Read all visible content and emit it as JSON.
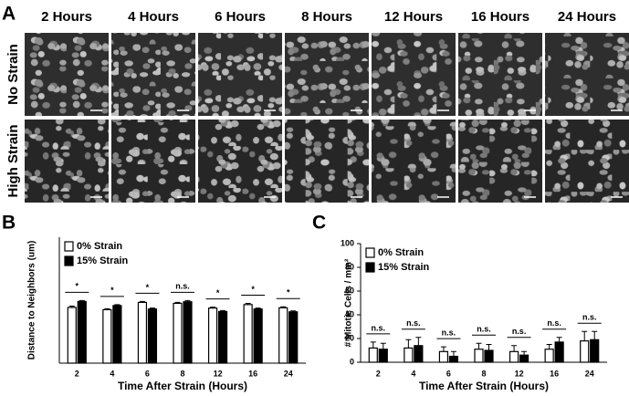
{
  "panel_a": {
    "label": "A",
    "columns": [
      "2 Hours",
      "4 Hours",
      "6 Hours",
      "8 Hours",
      "12 Hours",
      "16 Hours",
      "24 Hours"
    ],
    "rows": [
      "No Strain",
      "High Strain"
    ]
  },
  "chart_data": [
    {
      "type": "bar",
      "panel": "B",
      "x_label": "Time After Strain (Hours)",
      "y_label": "Distance to  Neighbors (um)",
      "categories": [
        "2",
        "4",
        "6",
        "8",
        "12",
        "16",
        "24"
      ],
      "series": [
        {
          "name": "0% Strain",
          "color": "#ffffff",
          "values": [
            17.7,
            17.0,
            19.3,
            19.0,
            17.5,
            18.6,
            17.6
          ],
          "errors": [
            0.4,
            0.3,
            0.3,
            0.3,
            0.3,
            0.4,
            0.3
          ]
        },
        {
          "name": "15% Strain",
          "color": "#000000",
          "values": [
            19.6,
            18.3,
            17.2,
            19.5,
            16.4,
            17.2,
            16.3
          ],
          "errors": [
            0.3,
            0.3,
            0.3,
            0.4,
            0.3,
            0.3,
            0.3
          ]
        }
      ],
      "annotations": [
        "*",
        "*",
        "*",
        "n.s.",
        "*",
        "*",
        "*"
      ],
      "ylim": [
        0,
        40
      ],
      "legend": "top-left"
    },
    {
      "type": "bar",
      "panel": "C",
      "x_label": "Time After Strain (Hours)",
      "y_label": "# Mitotic Cells / mm²",
      "categories": [
        "2",
        "4",
        "6",
        "8",
        "12",
        "16",
        "24"
      ],
      "series": [
        {
          "name": "0% Strain",
          "color": "#ffffff",
          "values": [
            12,
            12,
            9,
            11,
            9,
            11,
            18
          ],
          "errors": [
            5,
            7,
            4,
            5,
            5,
            4,
            8
          ]
        },
        {
          "name": "15% Strain",
          "color": "#000000",
          "values": [
            11,
            14,
            5,
            10,
            6,
            17,
            19
          ],
          "errors": [
            5,
            7,
            4,
            5,
            3,
            4,
            7
          ]
        }
      ],
      "annotations": [
        "n.s.",
        "n.s.",
        "n.s.",
        "n.s.",
        "n.s.",
        "n.s.",
        "n.s."
      ],
      "ylim": [
        0,
        100
      ],
      "yticks": [
        0,
        20,
        40,
        60,
        80,
        100
      ],
      "legend": "top-left"
    }
  ]
}
